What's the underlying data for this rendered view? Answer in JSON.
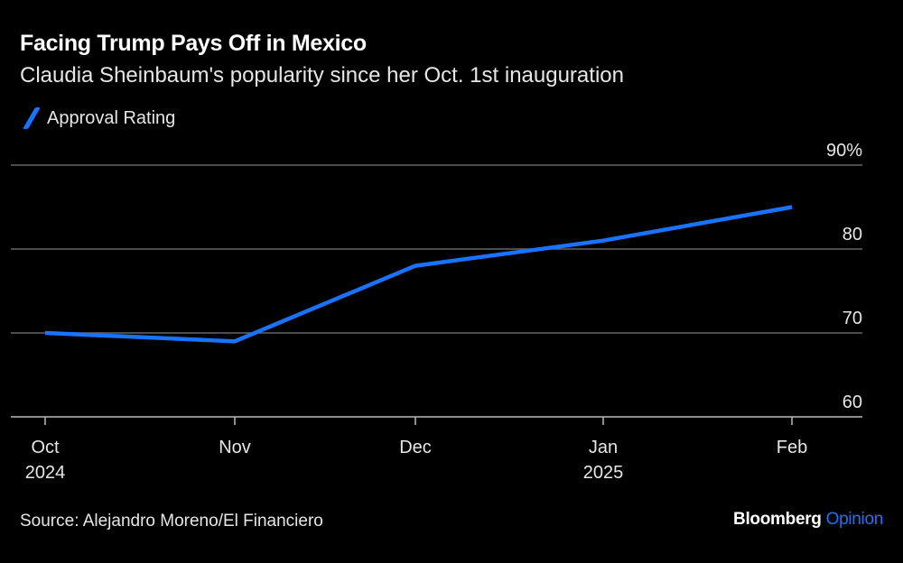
{
  "title": "Facing Trump Pays Off in Mexico",
  "subtitle": "Claudia Sheinbaum's popularity since her Oct. 1st inauguration",
  "source": "Source: Alejandro Moreno/El Financiero",
  "logo": {
    "brand": "Bloomberg",
    "section": "Opinion"
  },
  "colors": {
    "line": "#1a73ff",
    "grid": "#666666",
    "background": "#000000"
  },
  "chart_data": {
    "type": "line",
    "title": "Facing Trump Pays Off in Mexico",
    "subtitle": "Claudia Sheinbaum's popularity since her Oct. 1st inauguration",
    "categories": [
      "Oct 2024",
      "Nov",
      "Dec",
      "Jan 2025",
      "Feb"
    ],
    "x_tick_labels": [
      {
        "line1": "Oct",
        "line2": "2024"
      },
      {
        "line1": "Nov",
        "line2": ""
      },
      {
        "line1": "Dec",
        "line2": ""
      },
      {
        "line1": "Jan",
        "line2": "2025"
      },
      {
        "line1": "Feb",
        "line2": ""
      }
    ],
    "series": [
      {
        "name": "Approval Rating",
        "values": [
          70,
          69,
          78,
          81,
          85
        ]
      }
    ],
    "y_ticks": [
      60,
      70,
      80,
      90
    ],
    "y_tick_labels": [
      "60",
      "70",
      "80",
      "90%"
    ],
    "ylim": [
      60,
      90
    ],
    "grid": true,
    "y_axis_position": "right",
    "legend": "top-left"
  }
}
